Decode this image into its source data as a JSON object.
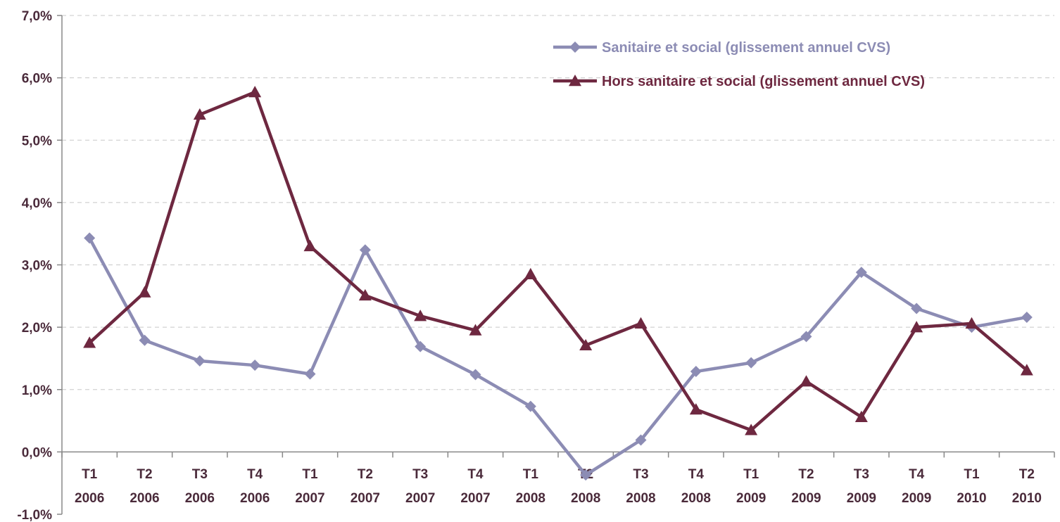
{
  "chart_data": {
    "type": "line",
    "title": "",
    "xlabel": "",
    "ylabel": "",
    "ylim": [
      -1.0,
      7.0
    ],
    "yticks": [
      "-1,0%",
      "0,0%",
      "1,0%",
      "2,0%",
      "3,0%",
      "4,0%",
      "5,0%",
      "6,0%",
      "7,0%"
    ],
    "yticks_values": [
      -1,
      0,
      1,
      2,
      3,
      4,
      5,
      6,
      7
    ],
    "grid": "horizontal dashed",
    "legend_position": "top-right",
    "categories": [
      {
        "q": "T1",
        "y": "2006"
      },
      {
        "q": "T2",
        "y": "2006"
      },
      {
        "q": "T3",
        "y": "2006"
      },
      {
        "q": "T4",
        "y": "2006"
      },
      {
        "q": "T1",
        "y": "2007"
      },
      {
        "q": "T2",
        "y": "2007"
      },
      {
        "q": "T3",
        "y": "2007"
      },
      {
        "q": "T4",
        "y": "2007"
      },
      {
        "q": "T1",
        "y": "2008"
      },
      {
        "q": "T2",
        "y": "2008"
      },
      {
        "q": "T3",
        "y": "2008"
      },
      {
        "q": "T4",
        "y": "2008"
      },
      {
        "q": "T1",
        "y": "2009"
      },
      {
        "q": "T2",
        "y": "2009"
      },
      {
        "q": "T3",
        "y": "2009"
      },
      {
        "q": "T4",
        "y": "2009"
      },
      {
        "q": "T1",
        "y": "2010"
      },
      {
        "q": "T2",
        "y": "2010"
      }
    ],
    "series": [
      {
        "name": "Sanitaire et social (glissement annuel CVS)",
        "color": "#8c8cb4",
        "marker": "diamond",
        "values": [
          3.43,
          1.79,
          1.46,
          1.39,
          1.25,
          3.24,
          1.69,
          1.24,
          0.73,
          -0.37,
          0.19,
          1.29,
          1.43,
          1.85,
          2.88,
          2.3,
          2.0,
          2.16
        ]
      },
      {
        "name": "Hors sanitaire et social (glissement annuel CVS)",
        "color": "#6e2840",
        "marker": "triangle",
        "values": [
          1.75,
          2.56,
          5.41,
          5.77,
          3.3,
          2.51,
          2.18,
          1.95,
          2.85,
          1.71,
          2.06,
          0.68,
          0.35,
          1.13,
          0.56,
          2.0,
          2.06,
          1.31
        ]
      }
    ]
  }
}
